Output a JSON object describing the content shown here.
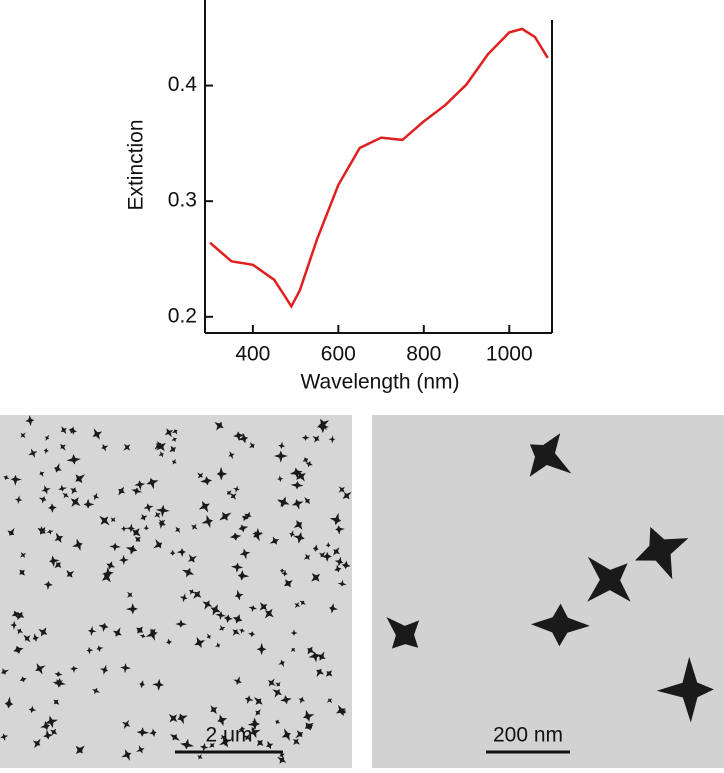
{
  "chart_data": {
    "type": "line",
    "x_label": "Wavelength (nm)",
    "y_label": "Extinction",
    "x": [
      300,
      350,
      400,
      450,
      480,
      490,
      510,
      550,
      600,
      650,
      700,
      750,
      800,
      850,
      900,
      950,
      1000,
      1030,
      1060,
      1090
    ],
    "values": [
      0.264,
      0.248,
      0.245,
      0.232,
      0.215,
      0.209,
      0.223,
      0.267,
      0.314,
      0.346,
      0.355,
      0.353,
      0.369,
      0.383,
      0.401,
      0.427,
      0.446,
      0.449,
      0.442,
      0.424
    ],
    "color": "#e02020",
    "xlim": [
      288,
      1100
    ],
    "ylim": [
      0.186,
      0.474
    ],
    "xticks": [
      400,
      600,
      800,
      1000
    ],
    "yticks": [
      0.2,
      0.3,
      0.4
    ]
  },
  "images": [
    {
      "scale_bar": "2 μm"
    },
    {
      "scale_bar": "200 nm"
    }
  ]
}
